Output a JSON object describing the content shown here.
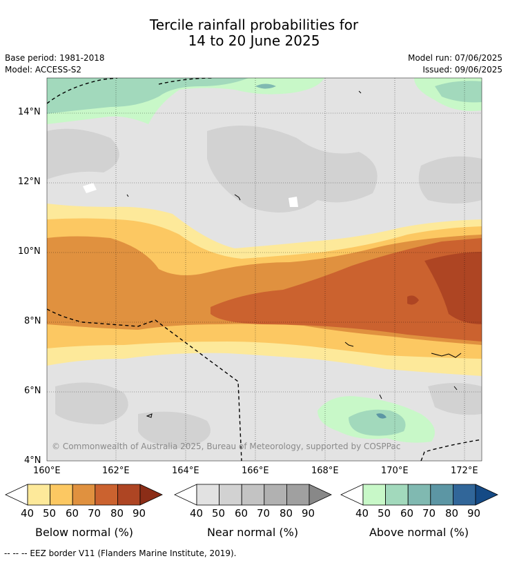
{
  "title_line1": "Tercile rainfall probabilities for",
  "title_line2": "14 to 20 June 2025",
  "base_period": "Base period: 1981-2018",
  "model": "Model: ACCESS-S2",
  "model_run": "Model run: 07/06/2025",
  "issued": "Issued: 09/06/2025",
  "copyright": "© Commonwealth of Australia 2025, Bureau of Meteorology, supported by COSPPac",
  "footnote": "--  --  -- EEZ border V11 (Flanders Marine Institute, 2019).",
  "map": {
    "lon_ticks": [
      "160°E",
      "162°E",
      "164°E",
      "166°E",
      "168°E",
      "170°E",
      "172°E"
    ],
    "lat_ticks": [
      "4°N",
      "6°N",
      "8°N",
      "10°N",
      "12°N",
      "14°N"
    ]
  },
  "colorbars": [
    {
      "label": "Below normal (%)",
      "ticks": [
        "40",
        "50",
        "60",
        "70",
        "80",
        "90"
      ],
      "colors": [
        "#fde99a",
        "#fcc862",
        "#e0913f",
        "#cb622f",
        "#ae4523",
        "#8b2d17"
      ]
    },
    {
      "label": "Near normal (%)",
      "ticks": [
        "40",
        "50",
        "60",
        "70",
        "80",
        "90"
      ],
      "colors": [
        "#e2e2e2",
        "#d2d2d2",
        "#c3c3c3",
        "#b1b1b1",
        "#a0a0a0",
        "#888888"
      ]
    },
    {
      "label": "Above normal (%)",
      "ticks": [
        "40",
        "50",
        "60",
        "70",
        "80",
        "90"
      ],
      "colors": [
        "#c8f8c8",
        "#a2d9bc",
        "#80b9b1",
        "#5c96a4",
        "#316699",
        "#154a85"
      ]
    }
  ]
}
